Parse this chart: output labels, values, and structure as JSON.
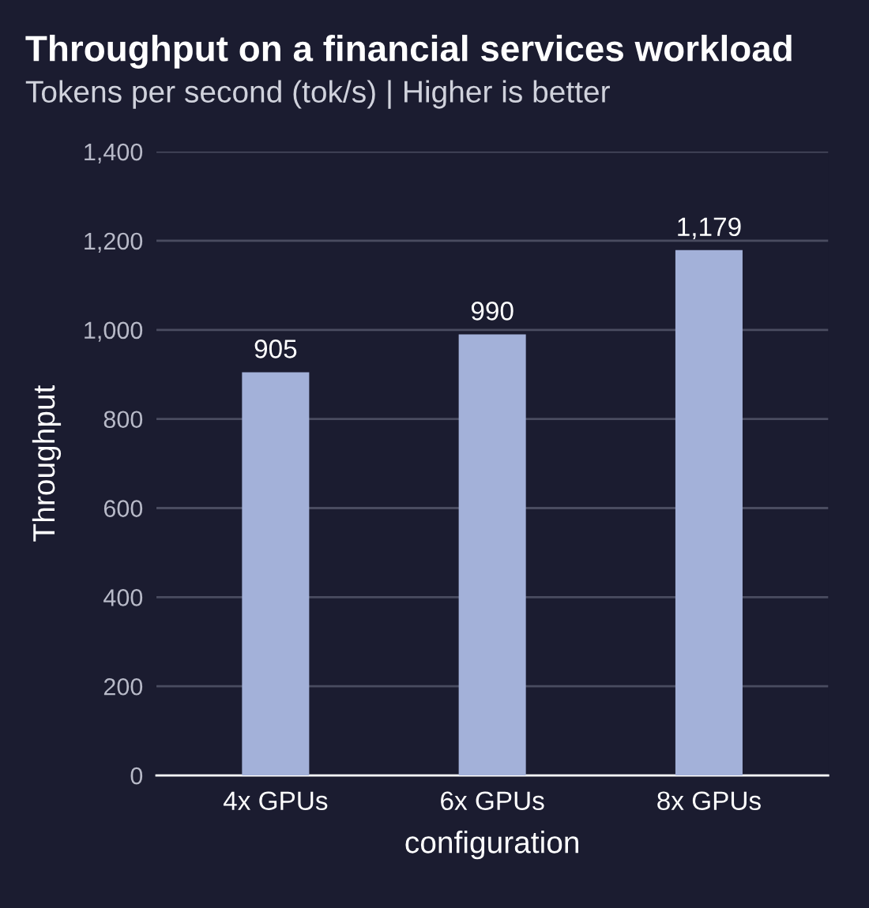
{
  "chart_data": {
    "type": "bar",
    "title": "Throughput on a financial services workload",
    "subtitle": "Tokens per second (tok/s) | Higher is better",
    "xlabel": "configuration",
    "ylabel": "Throughput",
    "categories": [
      "4x GPUs",
      "6x GPUs",
      "8x GPUs"
    ],
    "values": [
      905,
      990,
      1179
    ],
    "color": "#a3b1d9",
    "ylim": [
      0,
      1400
    ],
    "yticks": [
      0,
      {
        "value": 200,
        "label": "200"
      },
      {
        "value": 400,
        "label": "400"
      },
      {
        "value": 600,
        "label": "600"
      },
      {
        "value": 800,
        "label": "800"
      },
      {
        "value": 1000,
        "label": "1,000"
      },
      {
        "value": 1200,
        "label": "1,200"
      },
      {
        "value": 1400,
        "label": "1,400"
      }
    ],
    "value_labels": [
      "905",
      "990",
      "1,179"
    ],
    "grid": "y"
  }
}
